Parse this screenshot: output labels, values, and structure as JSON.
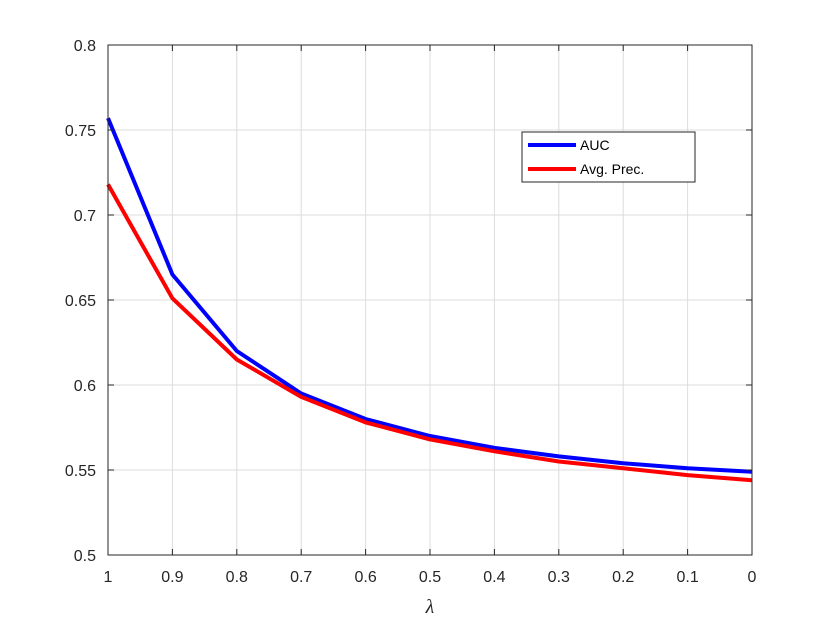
{
  "chart_data": {
    "type": "line",
    "xlabel": "λ",
    "ylabel": "",
    "title": "",
    "x": [
      1,
      0.9,
      0.8,
      0.7,
      0.6,
      0.5,
      0.4,
      0.3,
      0.2,
      0.1,
      0
    ],
    "x_reversed": true,
    "xlim": [
      0,
      1
    ],
    "ylim": [
      0.5,
      0.8
    ],
    "x_ticks": [
      1,
      0.9,
      0.8,
      0.7,
      0.6,
      0.5,
      0.4,
      0.3,
      0.2,
      0.1,
      0
    ],
    "x_tick_labels": [
      "1",
      "0.9",
      "0.8",
      "0.7",
      "0.6",
      "0.5",
      "0.4",
      "0.3",
      "0.2",
      "0.1",
      "0"
    ],
    "y_ticks": [
      0.5,
      0.55,
      0.6,
      0.65,
      0.7,
      0.75,
      0.8
    ],
    "y_tick_labels": [
      "0.5",
      "0.55",
      "0.6",
      "0.65",
      "0.7",
      "0.75",
      "0.8"
    ],
    "grid": true,
    "legend_position": "top-right",
    "series": [
      {
        "name": "AUC",
        "color": "#0000ff",
        "values": [
          0.757,
          0.665,
          0.62,
          0.595,
          0.58,
          0.57,
          0.563,
          0.558,
          0.554,
          0.551,
          0.549
        ]
      },
      {
        "name": "Avg. Prec.",
        "color": "#ff0000",
        "values": [
          0.718,
          0.651,
          0.615,
          0.593,
          0.578,
          0.568,
          0.561,
          0.555,
          0.551,
          0.547,
          0.544
        ]
      }
    ]
  }
}
